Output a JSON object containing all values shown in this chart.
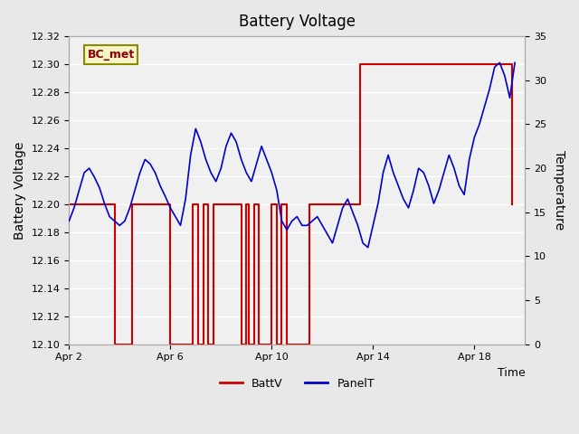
{
  "title": "Battery Voltage",
  "xlabel": "Time",
  "ylabel_left": "Battery Voltage",
  "ylabel_right": "Temperature",
  "ylim_left": [
    12.1,
    12.32
  ],
  "ylim_right": [
    0,
    35
  ],
  "yticks_left": [
    12.1,
    12.12,
    12.14,
    12.16,
    12.18,
    12.2,
    12.22,
    12.24,
    12.26,
    12.28,
    12.3,
    12.32
  ],
  "yticks_right": [
    0,
    5,
    10,
    15,
    20,
    25,
    30,
    35
  ],
  "xtick_labels": [
    "Apr 2",
    "Apr 6",
    "Apr 10",
    "Apr 14",
    "Apr 18"
  ],
  "xtick_positions": [
    2,
    6,
    10,
    14,
    18
  ],
  "xlim": [
    2,
    20
  ],
  "annotation_text": "BC_met",
  "bg_color": "#e8e8e8",
  "plot_bg_color": "#f0f0f0",
  "battv_color": "#cc0000",
  "panelt_color": "#0000cc",
  "grid_color": "#ffffff",
  "legend_battv": "BattV",
  "legend_panelt": "PanelT",
  "battv_data": {
    "x": [
      2.0,
      2.0,
      3.8,
      3.8,
      4.5,
      4.5,
      6.0,
      6.0,
      6.9,
      6.9,
      7.1,
      7.1,
      7.3,
      7.3,
      7.5,
      7.5,
      7.7,
      7.7,
      8.8,
      8.8,
      9.0,
      9.0,
      9.1,
      9.1,
      9.3,
      9.3,
      9.5,
      9.5,
      10.0,
      10.0,
      10.2,
      10.2,
      10.4,
      10.4,
      10.6,
      10.6,
      11.5,
      11.5,
      13.5,
      13.5,
      19.5,
      19.5
    ],
    "y": [
      12.2,
      12.2,
      12.2,
      12.1,
      12.1,
      12.2,
      12.2,
      12.1,
      12.1,
      12.2,
      12.2,
      12.1,
      12.1,
      12.2,
      12.2,
      12.1,
      12.1,
      12.2,
      12.2,
      12.1,
      12.1,
      12.2,
      12.2,
      12.1,
      12.1,
      12.2,
      12.2,
      12.1,
      12.1,
      12.2,
      12.2,
      12.1,
      12.1,
      12.2,
      12.2,
      12.1,
      12.1,
      12.2,
      12.2,
      12.3,
      12.3,
      12.2
    ]
  },
  "panelt_data": {
    "x": [
      2.0,
      2.2,
      2.4,
      2.6,
      2.8,
      3.0,
      3.2,
      3.4,
      3.6,
      3.8,
      4.0,
      4.2,
      4.4,
      4.6,
      4.8,
      5.0,
      5.2,
      5.4,
      5.6,
      5.8,
      6.0,
      6.2,
      6.4,
      6.6,
      6.8,
      7.0,
      7.2,
      7.4,
      7.6,
      7.8,
      8.0,
      8.2,
      8.4,
      8.6,
      8.8,
      9.0,
      9.2,
      9.4,
      9.6,
      9.8,
      10.0,
      10.2,
      10.4,
      10.6,
      10.8,
      11.0,
      11.2,
      11.4,
      11.6,
      11.8,
      12.0,
      12.2,
      12.4,
      12.6,
      12.8,
      13.0,
      13.2,
      13.4,
      13.6,
      13.8,
      14.0,
      14.2,
      14.4,
      14.6,
      14.8,
      15.0,
      15.2,
      15.4,
      15.6,
      15.8,
      16.0,
      16.2,
      16.4,
      16.6,
      16.8,
      17.0,
      17.2,
      17.4,
      17.6,
      17.8,
      18.0,
      18.2,
      18.4,
      18.6,
      18.8,
      19.0,
      19.2,
      19.4,
      19.6
    ],
    "y": [
      14.0,
      15.5,
      17.5,
      19.5,
      20.0,
      19.0,
      17.8,
      16.0,
      14.5,
      14.0,
      13.5,
      14.0,
      15.5,
      17.5,
      19.5,
      21.0,
      20.5,
      19.5,
      18.0,
      16.8,
      15.5,
      14.5,
      13.5,
      16.5,
      21.5,
      24.5,
      23.0,
      21.0,
      19.5,
      18.5,
      20.0,
      22.5,
      24.0,
      23.0,
      21.0,
      19.5,
      18.5,
      20.5,
      22.5,
      21.0,
      19.5,
      17.5,
      14.0,
      13.0,
      14.0,
      14.5,
      13.5,
      13.5,
      14.0,
      14.5,
      13.5,
      12.5,
      11.5,
      13.5,
      15.5,
      16.5,
      15.0,
      13.5,
      11.5,
      11.0,
      13.5,
      16.0,
      19.5,
      21.5,
      19.5,
      18.0,
      16.5,
      15.5,
      17.5,
      20.0,
      19.5,
      18.0,
      16.0,
      17.5,
      19.5,
      21.5,
      20.0,
      18.0,
      17.0,
      21.0,
      23.5,
      25.0,
      27.0,
      29.0,
      31.5,
      32.0,
      30.5,
      28.0,
      32.0
    ]
  }
}
